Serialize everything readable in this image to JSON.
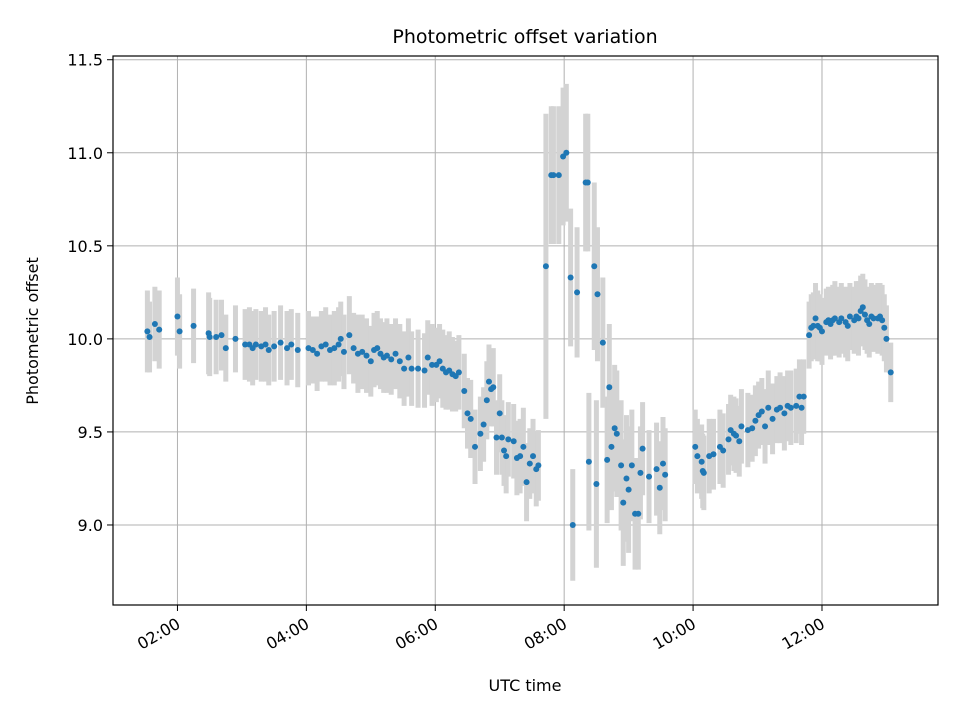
{
  "chart_data": {
    "type": "scatter",
    "title": "Photometric offset variation",
    "xlabel": "UTC time",
    "ylabel": "Photometric offset",
    "x_ticks": [
      "02:00",
      "04:00",
      "06:00",
      "08:00",
      "10:00",
      "12:00"
    ],
    "y_ticks": [
      "9.0",
      "9.5",
      "10.0",
      "10.5",
      "11.0",
      "11.5"
    ],
    "xlim": [
      "01:00",
      "13:48"
    ],
    "ylim": [
      8.57,
      11.52
    ],
    "grid": true,
    "colors": {
      "points": "#1f77b4",
      "errorbars": "#d3d3d3",
      "grid": "#b0b0b0"
    },
    "series": [
      {
        "points": [
          [
            "01:32",
            10.04,
            0.22
          ],
          [
            "01:34",
            10.01,
            0.19
          ],
          [
            "01:39",
            10.08,
            0.2
          ],
          [
            "01:43",
            10.05,
            0.21
          ],
          [
            "02:00",
            10.12,
            0.21
          ],
          [
            "02:02",
            10.04,
            0.2
          ],
          [
            "02:15",
            10.07,
            0.2
          ],
          [
            "02:29",
            10.03,
            0.22
          ],
          [
            "02:30",
            10.01,
            0.21
          ],
          [
            "02:36",
            10.01,
            0.2
          ],
          [
            "02:41",
            10.02,
            0.19
          ],
          [
            "02:45",
            9.95,
            0.18
          ],
          [
            "02:54",
            10.0,
            0.18
          ],
          [
            "03:03",
            9.97,
            0.19
          ],
          [
            "03:07",
            9.97,
            0.2
          ],
          [
            "03:10",
            9.95,
            0.2
          ],
          [
            "03:13",
            9.97,
            0.19
          ],
          [
            "03:18",
            9.96,
            0.19
          ],
          [
            "03:22",
            9.97,
            0.2
          ],
          [
            "03:25",
            9.94,
            0.19
          ],
          [
            "03:30",
            9.96,
            0.19
          ],
          [
            "03:36",
            9.98,
            0.2
          ],
          [
            "03:42",
            9.95,
            0.2
          ],
          [
            "03:46",
            9.97,
            0.19
          ],
          [
            "03:52",
            9.94,
            0.2
          ],
          [
            "04:02",
            9.95,
            0.2
          ],
          [
            "04:06",
            9.94,
            0.18
          ],
          [
            "04:10",
            9.92,
            0.2
          ],
          [
            "04:14",
            9.96,
            0.19
          ],
          [
            "04:18",
            9.97,
            0.2
          ],
          [
            "04:22",
            9.94,
            0.19
          ],
          [
            "04:26",
            9.95,
            0.2
          ],
          [
            "04:30",
            9.97,
            0.2
          ],
          [
            "04:32",
            10.0,
            0.2
          ],
          [
            "04:35",
            9.93,
            0.2
          ],
          [
            "04:40",
            10.02,
            0.21
          ],
          [
            "04:44",
            9.95,
            0.19
          ],
          [
            "04:48",
            9.92,
            0.21
          ],
          [
            "04:52",
            9.93,
            0.2
          ],
          [
            "04:56",
            9.91,
            0.2
          ],
          [
            "05:00",
            9.88,
            0.19
          ],
          [
            "05:03",
            9.94,
            0.2
          ],
          [
            "05:06",
            9.95,
            0.2
          ],
          [
            "05:09",
            9.92,
            0.19
          ],
          [
            "05:12",
            9.9,
            0.19
          ],
          [
            "05:15",
            9.91,
            0.2
          ],
          [
            "05:19",
            9.89,
            0.19
          ],
          [
            "05:23",
            9.92,
            0.19
          ],
          [
            "05:27",
            9.88,
            0.2
          ],
          [
            "05:31",
            9.84,
            0.2
          ],
          [
            "05:35",
            9.9,
            0.21
          ],
          [
            "05:38",
            9.84,
            0.2
          ],
          [
            "05:44",
            9.84,
            0.21
          ],
          [
            "05:50",
            9.83,
            0.2
          ],
          [
            "05:53",
            9.9,
            0.2
          ],
          [
            "05:57",
            9.86,
            0.22
          ],
          [
            "06:01",
            9.86,
            0.2
          ],
          [
            "06:04",
            9.88,
            0.2
          ],
          [
            "06:07",
            9.84,
            0.21
          ],
          [
            "06:10",
            9.82,
            0.2
          ],
          [
            "06:13",
            9.83,
            0.21
          ],
          [
            "06:16",
            9.81,
            0.2
          ],
          [
            "06:19",
            9.8,
            0.19
          ],
          [
            "06:22",
            9.82,
            0.2
          ],
          [
            "06:27",
            9.72,
            0.2
          ],
          [
            "06:30",
            9.6,
            0.19
          ],
          [
            "06:33",
            9.57,
            0.21
          ],
          [
            "06:37",
            9.42,
            0.2
          ],
          [
            "06:42",
            9.49,
            0.2
          ],
          [
            "06:45",
            9.54,
            0.2
          ],
          [
            "06:48",
            9.67,
            0.21
          ],
          [
            "06:50",
            9.77,
            0.2
          ],
          [
            "06:52",
            9.73,
            0.2
          ],
          [
            "06:54",
            9.74,
            0.21
          ],
          [
            "06:57",
            9.47,
            0.2
          ],
          [
            "07:00",
            9.6,
            0.21
          ],
          [
            "07:02",
            9.47,
            0.2
          ],
          [
            "07:04",
            9.4,
            0.19
          ],
          [
            "07:06",
            9.37,
            0.2
          ],
          [
            "07:08",
            9.46,
            0.2
          ],
          [
            "07:13",
            9.45,
            0.2
          ],
          [
            "07:16",
            9.36,
            0.2
          ],
          [
            "07:19",
            9.37,
            0.2
          ],
          [
            "07:22",
            9.42,
            0.21
          ],
          [
            "07:25",
            9.23,
            0.21
          ],
          [
            "07:28",
            9.33,
            0.19
          ],
          [
            "07:31",
            9.37,
            0.2
          ],
          [
            "07:34",
            9.3,
            0.2
          ],
          [
            "07:36",
            9.32,
            0.19
          ],
          [
            "07:43",
            10.39,
            0.82
          ],
          [
            "07:48",
            10.88,
            0.37
          ],
          [
            "07:50",
            10.88,
            0.37
          ],
          [
            "07:55",
            10.88,
            0.37
          ],
          [
            "07:59",
            10.98,
            0.37
          ],
          [
            "08:02",
            11.0,
            0.37
          ],
          [
            "08:06",
            10.33,
            0.37
          ],
          [
            "08:08",
            9.0,
            0.3
          ],
          [
            "08:12",
            10.25,
            0.35
          ],
          [
            "08:20",
            10.84,
            0.37
          ],
          [
            "08:22",
            10.84,
            0.37
          ],
          [
            "08:23",
            9.34,
            0.37
          ],
          [
            "08:28",
            10.39,
            0.45
          ],
          [
            "08:30",
            9.22,
            0.45
          ],
          [
            "08:31",
            10.24,
            0.36
          ],
          [
            "08:36",
            9.98,
            0.35
          ],
          [
            "08:40",
            9.35,
            0.34
          ],
          [
            "08:42",
            9.74,
            0.34
          ],
          [
            "08:44",
            9.42,
            0.34
          ],
          [
            "08:47",
            9.52,
            0.34
          ],
          [
            "08:49",
            9.49,
            0.34
          ],
          [
            "08:53",
            9.32,
            0.35
          ],
          [
            "08:55",
            9.12,
            0.34
          ],
          [
            "08:58",
            9.25,
            0.34
          ],
          [
            "09:00",
            9.19,
            0.34
          ],
          [
            "09:03",
            9.32,
            0.3
          ],
          [
            "09:06",
            9.06,
            0.3
          ],
          [
            "09:09",
            9.06,
            0.3
          ],
          [
            "09:11",
            9.28,
            0.25
          ],
          [
            "09:13",
            9.41,
            0.25
          ],
          [
            "09:19",
            9.26,
            0.25
          ],
          [
            "09:26",
            9.3,
            0.25
          ],
          [
            "09:29",
            9.2,
            0.25
          ],
          [
            "09:32",
            9.33,
            0.25
          ],
          [
            "09:34",
            9.27,
            0.25
          ],
          [
            "10:02",
            9.42,
            0.2
          ],
          [
            "10:04",
            9.37,
            0.2
          ],
          [
            "10:08",
            9.34,
            0.2
          ],
          [
            "10:09",
            9.29,
            0.2
          ],
          [
            "10:10",
            9.28,
            0.2
          ],
          [
            "10:15",
            9.37,
            0.2
          ],
          [
            "10:19",
            9.38,
            0.19
          ],
          [
            "10:25",
            9.42,
            0.2
          ],
          [
            "10:28",
            9.4,
            0.2
          ],
          [
            "10:33",
            9.46,
            0.19
          ],
          [
            "10:35",
            9.51,
            0.19
          ],
          [
            "10:38",
            9.49,
            0.2
          ],
          [
            "10:40",
            9.48,
            0.2
          ],
          [
            "10:43",
            9.45,
            0.19
          ],
          [
            "10:45",
            9.53,
            0.2
          ],
          [
            "10:51",
            9.51,
            0.2
          ],
          [
            "10:55",
            9.52,
            0.18
          ],
          [
            "10:58",
            9.56,
            0.19
          ],
          [
            "11:01",
            9.59,
            0.18
          ],
          [
            "11:04",
            9.61,
            0.18
          ],
          [
            "11:07",
            9.53,
            0.2
          ],
          [
            "11:10",
            9.63,
            0.2
          ],
          [
            "11:14",
            9.57,
            0.19
          ],
          [
            "11:18",
            9.62,
            0.18
          ],
          [
            "11:21",
            9.63,
            0.19
          ],
          [
            "11:25",
            9.6,
            0.2
          ],
          [
            "11:28",
            9.64,
            0.19
          ],
          [
            "11:31",
            9.63,
            0.2
          ],
          [
            "11:36",
            9.64,
            0.2
          ],
          [
            "11:39",
            9.69,
            0.2
          ],
          [
            "11:41",
            9.63,
            0.2
          ],
          [
            "11:43",
            9.69,
            0.2
          ],
          [
            "11:48",
            10.02,
            0.18
          ],
          [
            "11:50",
            10.06,
            0.18
          ],
          [
            "11:52",
            10.07,
            0.18
          ],
          [
            "11:54",
            10.11,
            0.19
          ],
          [
            "11:56",
            10.07,
            0.19
          ],
          [
            "11:58",
            10.06,
            0.18
          ],
          [
            "12:00",
            10.04,
            0.18
          ],
          [
            "12:04",
            10.09,
            0.18
          ],
          [
            "12:06",
            10.1,
            0.18
          ],
          [
            "12:08",
            10.08,
            0.19
          ],
          [
            "12:10",
            10.1,
            0.19
          ],
          [
            "12:12",
            10.11,
            0.2
          ],
          [
            "12:16",
            10.09,
            0.19
          ],
          [
            "12:18",
            10.11,
            0.19
          ],
          [
            "12:22",
            10.09,
            0.19
          ],
          [
            "12:24",
            10.07,
            0.19
          ],
          [
            "12:26",
            10.12,
            0.18
          ],
          [
            "12:30",
            10.1,
            0.18
          ],
          [
            "12:32",
            10.12,
            0.19
          ],
          [
            "12:34",
            10.11,
            0.2
          ],
          [
            "12:36",
            10.15,
            0.19
          ],
          [
            "12:38",
            10.17,
            0.18
          ],
          [
            "12:40",
            10.13,
            0.19
          ],
          [
            "12:42",
            10.1,
            0.18
          ],
          [
            "12:44",
            10.08,
            0.18
          ],
          [
            "12:46",
            10.12,
            0.18
          ],
          [
            "12:48",
            10.11,
            0.18
          ],
          [
            "12:52",
            10.11,
            0.19
          ],
          [
            "12:54",
            10.12,
            0.18
          ],
          [
            "12:56",
            10.1,
            0.19
          ],
          [
            "12:58",
            10.06,
            0.18
          ],
          [
            "13:00",
            10.0,
            0.18
          ],
          [
            "13:04",
            9.82,
            0.16
          ]
        ]
      }
    ]
  }
}
